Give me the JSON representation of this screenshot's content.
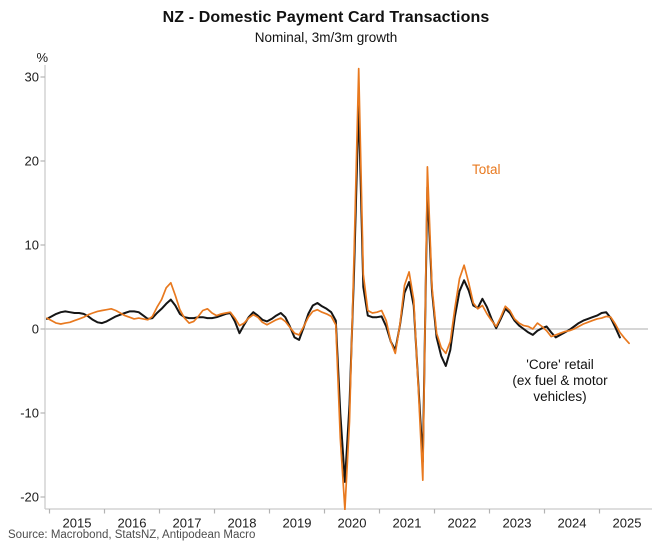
{
  "header": {
    "title": "NZ - Domestic Payment Card Transactions",
    "subtitle": "Nominal, 3m/3m growth"
  },
  "annotations": {
    "total_label": "Total",
    "core_label_lines": [
      "'Core' retail",
      "(ex fuel & motor",
      "vehicles)"
    ]
  },
  "source": "Source: Macrobond, StatsNZ, Antipodean Macro",
  "colors": {
    "total_line": "#E8791F",
    "core_line": "#151515",
    "axis": "#c9c9c9",
    "zero_line": "#c9c9c9",
    "tick": "#b3b3b3",
    "tick_text": "#1c1c1c",
    "source_text": "#4d4d4d"
  },
  "chart_data": {
    "type": "line",
    "title": "NZ - Domestic Payment Card Transactions",
    "subtitle": "Nominal, 3m/3m growth",
    "y_unit": "%",
    "frequency": "monthly",
    "x_start": "2014-12",
    "x_tick_labels": [
      "2015",
      "2016",
      "2017",
      "2018",
      "2019",
      "2020",
      "2021",
      "2022",
      "2023",
      "2024",
      "2025"
    ],
    "y_ticks": [
      30,
      20,
      10,
      0,
      -10,
      -20
    ],
    "ylim": [
      -21.5,
      31.5
    ],
    "grid": "zero-line-only",
    "legend_position": "in-plot-annotations",
    "series": [
      {
        "name": "Total",
        "color": "#E8791F",
        "values": [
          1.3,
          1.0,
          0.7,
          0.6,
          0.7,
          0.8,
          1.0,
          1.2,
          1.4,
          1.7,
          1.9,
          2.1,
          2.2,
          2.3,
          2.4,
          2.2,
          1.9,
          1.6,
          1.4,
          1.2,
          1.3,
          1.2,
          1.1,
          1.5,
          2.6,
          3.5,
          4.9,
          5.5,
          4.0,
          2.3,
          1.3,
          0.7,
          0.9,
          1.5,
          2.2,
          2.4,
          1.9,
          1.6,
          1.8,
          1.9,
          2.0,
          1.3,
          0.4,
          0.7,
          1.3,
          1.7,
          1.4,
          0.8,
          0.5,
          0.8,
          1.1,
          1.3,
          0.9,
          0.2,
          -0.5,
          -0.7,
          0.3,
          1.4,
          2.1,
          2.3,
          2.0,
          1.8,
          1.5,
          0.5,
          -13.0,
          -21.5,
          -11.0,
          9.0,
          31.0,
          6.5,
          2.2,
          1.9,
          2.0,
          2.2,
          1.0,
          -1.5,
          -2.9,
          0.5,
          5.2,
          6.8,
          3.5,
          -7.0,
          -18.0,
          19.3,
          5.0,
          -0.5,
          -2.2,
          -2.9,
          -1.5,
          2.5,
          6.0,
          7.6,
          5.5,
          3.1,
          2.4,
          2.8,
          1.8,
          1.0,
          0.3,
          1.4,
          2.7,
          2.2,
          1.2,
          0.7,
          0.4,
          0.3,
          0.0,
          0.7,
          0.3,
          -0.2,
          -0.9,
          -0.7,
          -0.5,
          -0.3,
          -0.2,
          0.0,
          0.3,
          0.6,
          0.8,
          1.0,
          1.2,
          1.3,
          1.5,
          1.4,
          0.6,
          -0.4,
          -1.1,
          -1.7
        ]
      },
      {
        "name": "'Core' retail (ex fuel & motor vehicles)",
        "color": "#151515",
        "values": [
          1.2,
          1.5,
          1.8,
          2.0,
          2.1,
          2.0,
          1.9,
          1.9,
          1.8,
          1.5,
          1.1,
          0.8,
          0.7,
          0.9,
          1.2,
          1.5,
          1.7,
          1.9,
          2.1,
          2.1,
          2.0,
          1.6,
          1.2,
          1.3,
          1.9,
          2.4,
          3.0,
          3.5,
          2.8,
          1.8,
          1.4,
          1.3,
          1.3,
          1.4,
          1.4,
          1.3,
          1.3,
          1.4,
          1.6,
          1.8,
          1.9,
          0.9,
          -0.5,
          0.5,
          1.4,
          2.0,
          1.6,
          1.1,
          0.9,
          1.2,
          1.6,
          1.9,
          1.4,
          0.3,
          -1.0,
          -1.3,
          0.2,
          1.8,
          2.8,
          3.1,
          2.7,
          2.4,
          2.0,
          1.0,
          -10.0,
          -18.2,
          -9.0,
          7.0,
          26.9,
          5.0,
          1.6,
          1.4,
          1.4,
          1.5,
          0.3,
          -1.5,
          -2.5,
          0.4,
          4.3,
          5.6,
          2.8,
          -6.5,
          -15.8,
          16.9,
          4.5,
          -1.0,
          -3.2,
          -4.4,
          -2.5,
          1.5,
          4.5,
          5.8,
          4.6,
          2.8,
          2.5,
          3.6,
          2.6,
          1.2,
          0.1,
          1.2,
          2.4,
          1.9,
          1.0,
          0.4,
          0.0,
          -0.4,
          -0.7,
          -0.2,
          0.1,
          0.3,
          -0.4,
          -1.0,
          -0.7,
          -0.4,
          -0.1,
          0.3,
          0.7,
          1.0,
          1.2,
          1.4,
          1.6,
          1.9,
          2.0,
          1.3,
          0.2,
          -1.0
        ]
      }
    ]
  }
}
